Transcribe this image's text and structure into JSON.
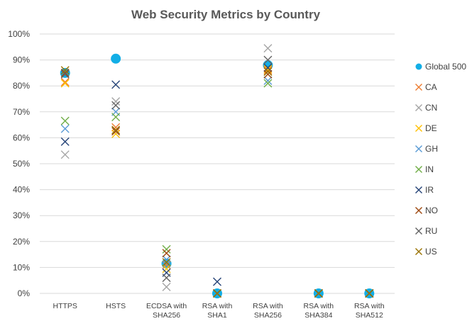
{
  "chart_data": {
    "type": "scatter",
    "title": "Web Security Metrics by Country",
    "categories": [
      [
        "HTTPS"
      ],
      [
        "HSTS"
      ],
      [
        "ECDSA with",
        "SHA256"
      ],
      [
        "RSA with",
        "SHA1"
      ],
      [
        "RSA with",
        "SHA256"
      ],
      [
        "RSA with",
        "SHA384"
      ],
      [
        "RSA with",
        "SHA512"
      ]
    ],
    "ylim": [
      0,
      100
    ],
    "yticks": [
      "0%",
      "10%",
      "20%",
      "30%",
      "40%",
      "50%",
      "60%",
      "70%",
      "80%",
      "90%",
      "100%"
    ],
    "grid": true,
    "legend_position": "right",
    "series": [
      {
        "name": "Global 500",
        "marker": "circle",
        "color": "#12aee6",
        "values": [
          85,
          90.5,
          11.5,
          0,
          88,
          0,
          0
        ]
      },
      {
        "name": "CA",
        "marker": "x",
        "color": "#ed7d31",
        "values": [
          81.5,
          64,
          11,
          0,
          86,
          0,
          0
        ]
      },
      {
        "name": "CN",
        "marker": "x",
        "color": "#a5a5a5",
        "values": [
          53.5,
          74,
          2.5,
          0,
          94.5,
          0,
          0
        ]
      },
      {
        "name": "DE",
        "marker": "x",
        "color": "#ffc000",
        "values": [
          81,
          61.5,
          9.5,
          0,
          86.5,
          0,
          0
        ]
      },
      {
        "name": "GH",
        "marker": "x",
        "color": "#5b9bd5",
        "values": [
          63.5,
          70,
          13,
          0,
          82,
          0,
          0
        ]
      },
      {
        "name": "IN",
        "marker": "x",
        "color": "#70ad47",
        "values": [
          66.5,
          68,
          17,
          0,
          81,
          0,
          0
        ]
      },
      {
        "name": "IR",
        "marker": "x",
        "color": "#264478",
        "values": [
          58.5,
          80.5,
          8,
          4.5,
          87,
          0,
          0
        ]
      },
      {
        "name": "NO",
        "marker": "x",
        "color": "#9e480e",
        "values": [
          85,
          62.5,
          15.5,
          0,
          84.5,
          0,
          0
        ]
      },
      {
        "name": "RU",
        "marker": "x",
        "color": "#636363",
        "values": [
          84.5,
          72.5,
          6,
          0,
          90,
          0,
          0
        ]
      },
      {
        "name": "US",
        "marker": "x",
        "color": "#997300",
        "values": [
          86,
          63,
          12,
          0,
          85.5,
          0,
          0
        ]
      }
    ]
  }
}
